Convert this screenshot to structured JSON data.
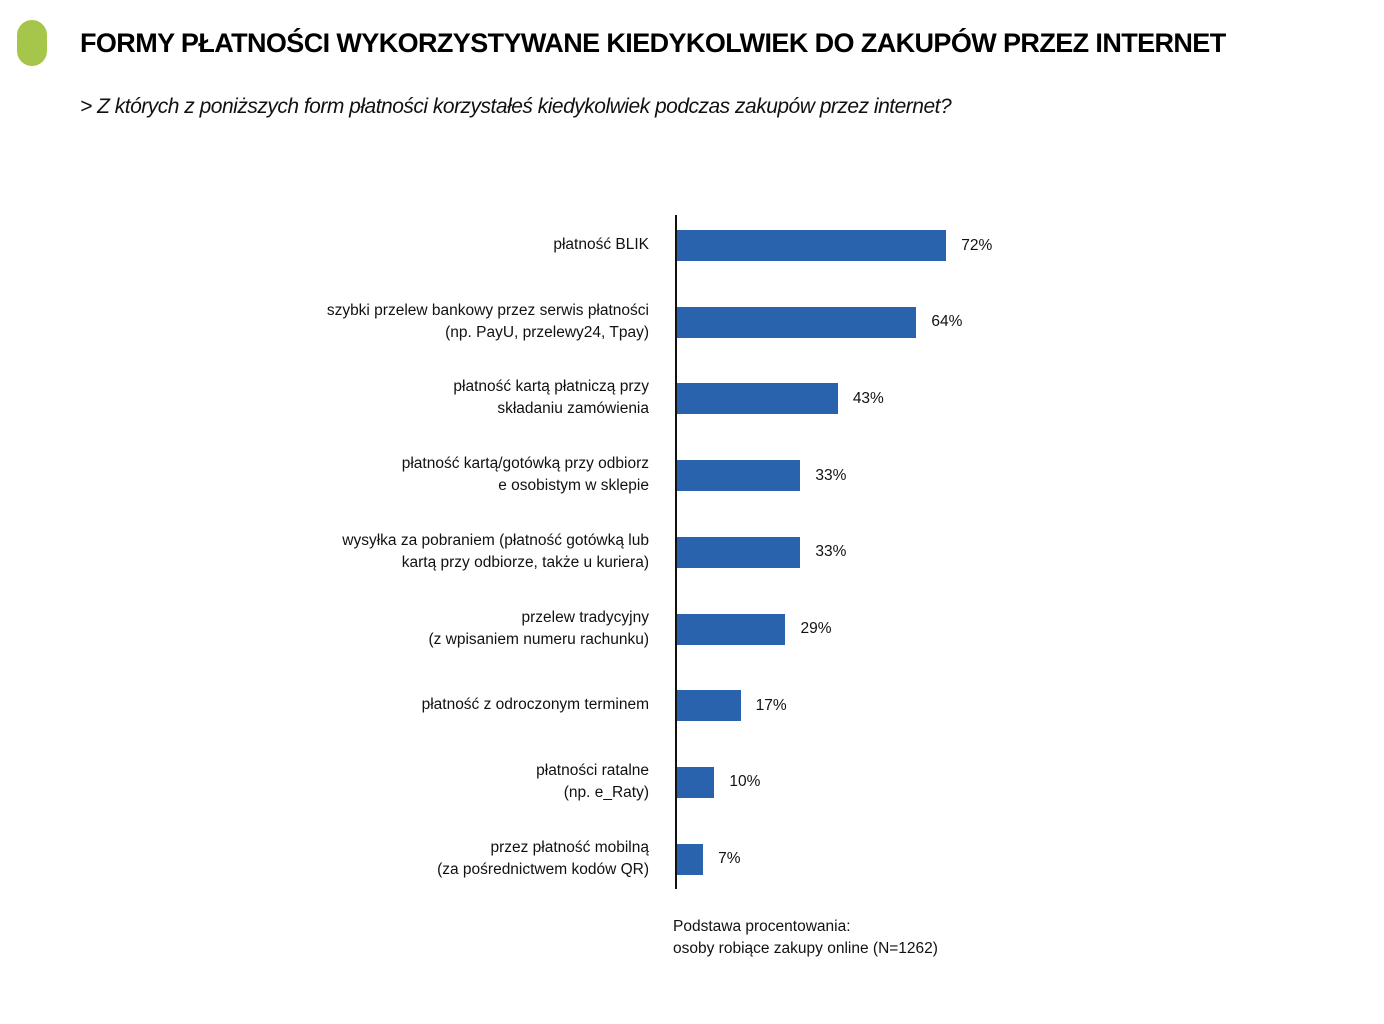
{
  "header": {
    "title": "FORMY PŁATNOŚCI WYKORZYSTYWANE KIEDYKOLWIEK DO ZAKUPÓW PRZEZ INTERNET",
    "subtitle": "> Z których z poniższych form płatności korzystałeś kiedykolwiek podczas zakupów przez internet?",
    "accent_color": "#a6c54b"
  },
  "footnote": {
    "line1": "Podstawa procentowania:",
    "line2": "osoby robiące zakupy online (N=1262)"
  },
  "chart_data": {
    "type": "bar",
    "orientation": "horizontal",
    "title": "FORMY PŁATNOŚCI WYKORZYSTYWANE KIEDYKOLWIEK DO ZAKUPÓW PRZEZ INTERNET",
    "subtitle": "> Z których z poniższych form płatności korzystałeś kiedykolwiek podczas zakupów przez internet?",
    "xlabel": "",
    "ylabel": "",
    "xlim": [
      0,
      100
    ],
    "grid": false,
    "legend": null,
    "bar_color": "#2a63ad",
    "categories": [
      "płatność BLIK",
      "szybki przelew bankowy przez serwis płatności (np. PayU, przelewy24, Tpay)",
      "płatność kartą płatniczą przy składaniu zamówienia",
      "płatność kartą/gotówką przy odbiorze osobistym w sklepie",
      "wysyłka za pobraniem (płatność gotówką lub kartą przy odbiorze, także u kuriera)",
      "przelew tradycyjny (z wpisaniem numeru rachunku)",
      "płatność z odroczonym terminem",
      "płatności ratalne (np. e_Raty)",
      "przez płatność mobilną (za pośrednictwem kodów QR)"
    ],
    "values": [
      72,
      64,
      43,
      33,
      33,
      29,
      17,
      10,
      7
    ],
    "value_labels": [
      "72%",
      "64%",
      "43%",
      "33%",
      "33%",
      "29%",
      "17%",
      "10%",
      "7%"
    ],
    "label_lines": [
      [
        "płatność BLIK"
      ],
      [
        "szybki przelew bankowy przez serwis płatności",
        "(np. PayU, przelewy24, Tpay)"
      ],
      [
        "płatność kartą płatniczą przy",
        "składaniu zamówienia"
      ],
      [
        "płatność kartą/gotówką przy odbiorz",
        "e osobistym w sklepie"
      ],
      [
        "wysyłka za pobraniem (płatność gotówką lub",
        "kartą przy odbiorze, także u kuriera)"
      ],
      [
        "przelew tradycyjny",
        "(z wpisaniem numeru rachunku)"
      ],
      [
        "płatność z odroczonym terminem"
      ],
      [
        "płatności ratalne",
        "(np. e_Raty)"
      ],
      [
        "przez płatność mobilną",
        "(za pośrednictwem kodów QR)"
      ]
    ],
    "note": "Podstawa procentowania: osoby robiące zakupy online (N=1262)"
  }
}
